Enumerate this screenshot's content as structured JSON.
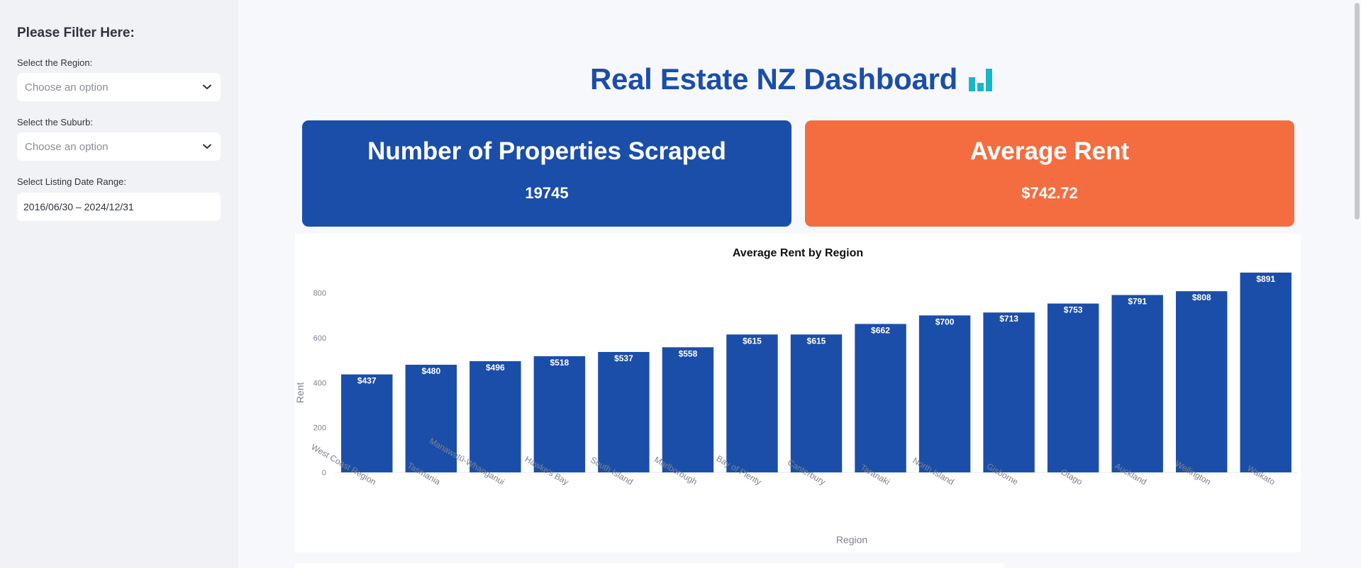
{
  "sidebar": {
    "title": "Please Filter Here:",
    "region_label": "Select the Region:",
    "region_placeholder": "Choose an option",
    "suburb_label": "Select the Suburb:",
    "suburb_placeholder": "Choose an option",
    "date_label": "Select Listing Date Range:",
    "date_value": "2016/06/30 – 2024/12/31"
  },
  "header": {
    "title": "Real Estate NZ Dashboard",
    "icon": "bar-chart-icon",
    "icon_color": "#17b6c9"
  },
  "kpis": {
    "properties": {
      "label": "Number of Properties Scraped",
      "value": "19745",
      "color": "#1b4ea8"
    },
    "rent": {
      "label": "Average Rent",
      "value": "$742.72",
      "color": "#f46d40"
    }
  },
  "chart_data": {
    "type": "bar",
    "title": "Average Rent by Region",
    "xlabel": "Region",
    "ylabel": "Rent",
    "categories": [
      "West Coast Region",
      "Tasmania",
      "Manawatū-Whanganui",
      "Hawke's Bay",
      "South Island",
      "Marlborough",
      "Bay of Plenty",
      "Canterbury",
      "Taranaki",
      "North Island",
      "Gisborne",
      "Otago",
      "Auckland",
      "Wellington",
      "Waikato"
    ],
    "values": [
      437,
      480,
      496,
      518,
      537,
      558,
      615,
      615,
      662,
      700,
      713,
      753,
      791,
      808,
      891
    ],
    "data_labels": [
      "$437",
      "$480",
      "$496",
      "$518",
      "$537",
      "$558",
      "$615",
      "$615",
      "$662",
      "$700",
      "$713",
      "$753",
      "$791",
      "$808",
      "$891"
    ],
    "yticks": [
      0,
      200,
      400,
      600,
      800
    ],
    "ylim": [
      0,
      938
    ],
    "bar_color": "#1b4ea8",
    "grid": false,
    "legend": "none"
  }
}
